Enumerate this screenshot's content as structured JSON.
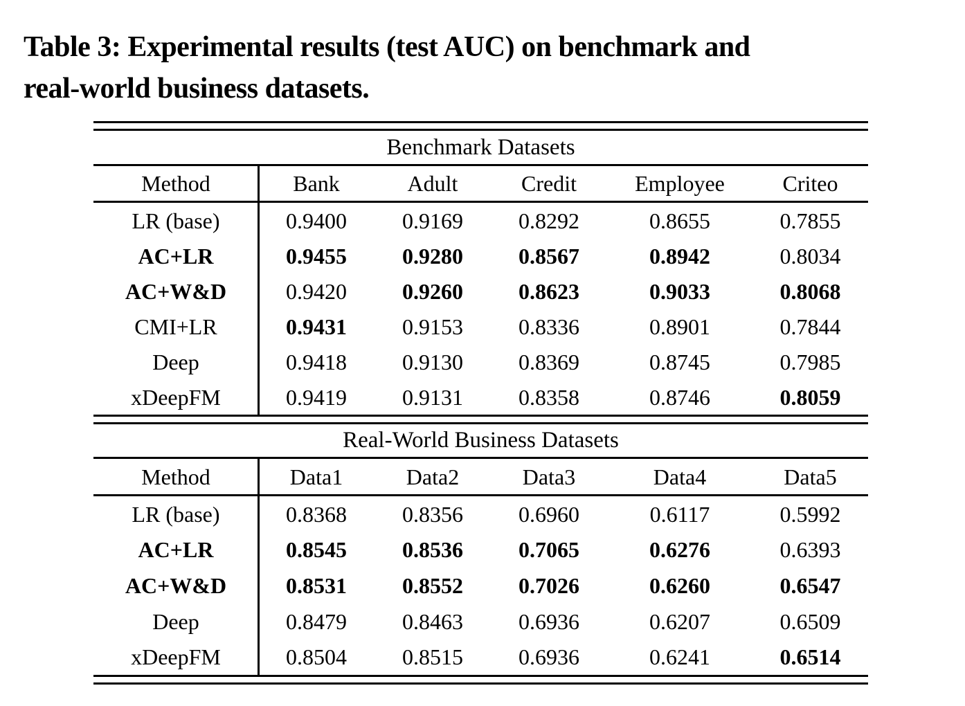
{
  "caption": {
    "lines": [
      "Table 3: Experimental results (test AUC) on benchmark and",
      "real-world business datasets."
    ]
  },
  "table": {
    "sections": [
      {
        "section_title": "Benchmark Datasets",
        "columns": [
          "Method",
          "Bank",
          "Adult",
          "Credit",
          "Employee",
          "Criteo"
        ],
        "rows": [
          {
            "method": "LR (base)",
            "method_bold": false,
            "values": [
              "0.9400",
              "0.9169",
              "0.8292",
              "0.8655",
              "0.7855"
            ],
            "bold": [
              false,
              false,
              false,
              false,
              false
            ]
          },
          {
            "method": "AC+LR",
            "method_bold": true,
            "values": [
              "0.9455",
              "0.9280",
              "0.8567",
              "0.8942",
              "0.8034"
            ],
            "bold": [
              true,
              true,
              true,
              true,
              false
            ]
          },
          {
            "method": "AC+W&D",
            "method_bold": true,
            "values": [
              "0.9420",
              "0.9260",
              "0.8623",
              "0.9033",
              "0.8068"
            ],
            "bold": [
              false,
              true,
              true,
              true,
              true
            ]
          },
          {
            "method": "CMI+LR",
            "method_bold": false,
            "values": [
              "0.9431",
              "0.9153",
              "0.8336",
              "0.8901",
              "0.7844"
            ],
            "bold": [
              true,
              false,
              false,
              false,
              false
            ]
          },
          {
            "method": "Deep",
            "method_bold": false,
            "values": [
              "0.9418",
              "0.9130",
              "0.8369",
              "0.8745",
              "0.7985"
            ],
            "bold": [
              false,
              false,
              false,
              false,
              false
            ]
          },
          {
            "method": "xDeepFM",
            "method_bold": false,
            "values": [
              "0.9419",
              "0.9131",
              "0.8358",
              "0.8746",
              "0.8059"
            ],
            "bold": [
              false,
              false,
              false,
              false,
              true
            ]
          }
        ]
      },
      {
        "section_title": "Real-World Business Datasets",
        "columns": [
          "Method",
          "Data1",
          "Data2",
          "Data3",
          "Data4",
          "Data5"
        ],
        "rows": [
          {
            "method": "LR (base)",
            "method_bold": false,
            "values": [
              "0.8368",
              "0.8356",
              "0.6960",
              "0.6117",
              "0.5992"
            ],
            "bold": [
              false,
              false,
              false,
              false,
              false
            ]
          },
          {
            "method": "AC+LR",
            "method_bold": true,
            "values": [
              "0.8545",
              "0.8536",
              "0.7065",
              "0.6276",
              "0.6393"
            ],
            "bold": [
              true,
              true,
              true,
              true,
              false
            ]
          },
          {
            "method": "AC+W&D",
            "method_bold": true,
            "values": [
              "0.8531",
              "0.8552",
              "0.7026",
              "0.6260",
              "0.6547"
            ],
            "bold": [
              true,
              true,
              true,
              true,
              true
            ]
          },
          {
            "method": "Deep",
            "method_bold": false,
            "values": [
              "0.8479",
              "0.8463",
              "0.6936",
              "0.6207",
              "0.6509"
            ],
            "bold": [
              false,
              false,
              false,
              false,
              false
            ]
          },
          {
            "method": "xDeepFM",
            "method_bold": false,
            "values": [
              "0.8504",
              "0.8515",
              "0.6936",
              "0.6241",
              "0.6514"
            ],
            "bold": [
              false,
              false,
              false,
              false,
              true
            ]
          }
        ]
      }
    ]
  }
}
